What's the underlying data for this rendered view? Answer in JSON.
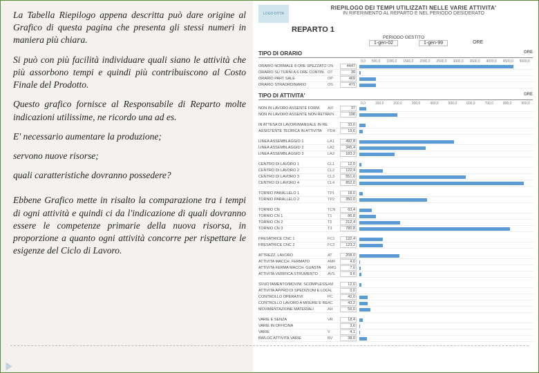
{
  "text": {
    "p1": "La Tabella Riepilogo appena descritta può dare origine al Grafico di questa pagina che presenta gli stessi numeri  in maniera più chiara.",
    "p2": "Si può con più facilità individuare quali siano le attività che più assorbono tempi e quindi più contribuiscono al Costo Finale del Prodotto.",
    "p3": "Questo grafico fornisce al Responsabile di Reparto molte indicazioni utilissime, ne ricordo una ad es.",
    "p4": "E' necessario aumentare la produzione;",
    "p5": " servono nuove risorse;",
    "p6": " quali caratteristiche dovranno possedere?",
    "p7": "Ebbene Grafico mette in risalto la comparazione tra i tempi di ogni attività e quindi ci da l'indicazione di quali dovranno essere le competenze primarie della nuova risorsa, in proporzione a quanto ogni attività concorre per rispettare le esigenze del  Ciclo di Lavoro."
  },
  "report": {
    "logo": "LOGO DITTA",
    "title": "RIEPILOGO DEI TEMPI UTILIZZATI NELLE VARIE ATTIVITA'",
    "subtitle": "IN RIFERIMENTO AL REPARTO E NEL PERIODO DESIDERATO",
    "reparto": "REPARTO 1",
    "periodo_label": "PERIODO GESTITO",
    "date_from": "1-gen-02",
    "date_to": "1-gen-99",
    "ore_label": "ORE"
  },
  "chart1": {
    "title": "TIPO DI ORARIO",
    "max": 5000,
    "ticks": [
      "0,0",
      "500,0",
      "1000,0",
      "1500,0",
      "2000,0",
      "2500,0",
      "3000,0",
      "3500,0",
      "4000,0",
      "4500,0",
      "5000,0"
    ],
    "bar_color": "#5b9bd5",
    "rows": [
      {
        "label": "ORARIO NORMALE 8 ORE SPEZZATO",
        "code": "ON",
        "val": "4447",
        "v": 4447
      },
      {
        "label": "ORARIO SU TURNI A 6 ORE CONTIN.",
        "code": "OT",
        "val": "39",
        "v": 39
      },
      {
        "label": "ORARIO PART SALE",
        "code": "OP",
        "val": "469",
        "v": 469
      },
      {
        "label": "ORARIO STRAORDINARIO",
        "code": "OS",
        "val": "471",
        "v": 471
      }
    ]
  },
  "chart2": {
    "title": "TIPO DI ATTIVITA'",
    "max": 900,
    "ticks": [
      "0,0",
      "100,0",
      "200,0",
      "300,0",
      "400,0",
      "500,0",
      "600,0",
      "700,0",
      "800,0",
      "900,0"
    ],
    "bar_color": "#5b9bd5",
    "groups": [
      [
        {
          "label": "NON IN LAVORO ASSENTE FORM.",
          "code": "A/F",
          "val": "37",
          "v": 37
        },
        {
          "label": "NON IN LAVORO ASSENTE NON RETRIBUITO",
          "code": "A/N",
          "val": "198",
          "v": 198
        }
      ],
      [
        {
          "label": "IN ATTESA DI LAVORI/MANUALE IN REP.",
          "code": "",
          "val": "33,6",
          "v": 33.6
        },
        {
          "label": "ASSISTENTE TEORICA IN ATTIVITA'",
          "code": "PDA",
          "val": "19,6",
          "v": 19.6
        }
      ],
      [
        {
          "label": "LINEA ASSEMBLAGGIO 1",
          "code": "LA1",
          "val": "492,8",
          "v": 492.8
        },
        {
          "label": "LINEA ASSEMBLAGGIO 2",
          "code": "LA2",
          "val": "345,4",
          "v": 345.4
        },
        {
          "label": "LINEA ASSEMBLAGGIO 3",
          "code": "LA3",
          "val": "183,2",
          "v": 183.2
        }
      ],
      [
        {
          "label": "CENTRO DI LAVORO 1",
          "code": "CL1",
          "val": "12,0",
          "v": 12
        },
        {
          "label": "CENTRO DI LAVORO 2",
          "code": "CL2",
          "val": "122,4",
          "v": 122.4
        },
        {
          "label": "CENTRO DI LAVORO 3",
          "code": "CL3",
          "val": "551,6",
          "v": 551.6
        },
        {
          "label": "CENTRO DI LAVORO 4",
          "code": "CL4",
          "val": "852,0",
          "v": 852
        }
      ],
      [
        {
          "label": "TORNIO PARALLELO 1",
          "code": "TP1",
          "val": "18,0",
          "v": 18
        },
        {
          "label": "TORNIO PARALLELO 2",
          "code": "TP2",
          "val": "350,0",
          "v": 350
        }
      ],
      [
        {
          "label": "TORNIO CN",
          "code": "TCN",
          "val": "63,4",
          "v": 63.4
        },
        {
          "label": "TORNIO CN 1",
          "code": "T1",
          "val": "86,8",
          "v": 86.8
        },
        {
          "label": "TORNIO CN 2",
          "code": "T2",
          "val": "212,4",
          "v": 212.4
        },
        {
          "label": "TORNIO CN 3",
          "code": "T3",
          "val": "780,8",
          "v": 780.8
        }
      ],
      [
        {
          "label": "FRESATRICE CNC 1",
          "code": "FC1",
          "val": "122,4",
          "v": 122.4
        },
        {
          "label": "FRESATRICE CNC 2",
          "code": "FC2",
          "val": "123,2",
          "v": 123.2
        }
      ],
      [
        {
          "label": "ATTREZZ. LAVORO",
          "code": "AT",
          "val": "208,0",
          "v": 208
        },
        {
          "label": "ATTIVITA MACCH. FERMATO",
          "code": "AMF",
          "val": "4,0",
          "v": 4
        },
        {
          "label": "ATTIVITA FERMA MACCH. GUASTA",
          "code": "AMG",
          "val": "7,0",
          "v": 7
        },
        {
          "label": "ATTIVITA VERIFICA STRUMENTO",
          "code": "AVS",
          "val": "9,6",
          "v": 9.6
        }
      ],
      [
        {
          "label": "SVUOTAMENTO/MOVIM. SCOMPLESSA",
          "code": "AM",
          "val": "12,0",
          "v": 12
        },
        {
          "label": "ATTIVITA APPRO DI SPEDIZIONI E LOGISTICA",
          "code": "AL",
          "val": "0,0",
          "v": 0
        },
        {
          "label": "CONTROLLO OPERATIVI",
          "code": "PC",
          "val": "42,0",
          "v": 42
        },
        {
          "label": "CONTROLLO LAVORO A MISURE E REGISTRAZIONI",
          "code": "AC",
          "val": "43,2",
          "v": 43.2
        },
        {
          "label": "MOVIMENTAZIONE MATERIALI",
          "code": "AH",
          "val": "56,0",
          "v": 56
        }
      ],
      [
        {
          "label": "VARIE E SENZA",
          "code": "VR",
          "val": "18,4",
          "v": 18.4
        },
        {
          "label": "VARIE IN OFFICINA",
          "code": "",
          "val": "3,6",
          "v": 3.6
        },
        {
          "label": "VARIE",
          "code": "V",
          "val": "4,1",
          "v": 4.1
        },
        {
          "label": "BWLOC ATTIVITA VARIE",
          "code": "BV",
          "val": "38,0",
          "v": 38
        }
      ]
    ]
  }
}
